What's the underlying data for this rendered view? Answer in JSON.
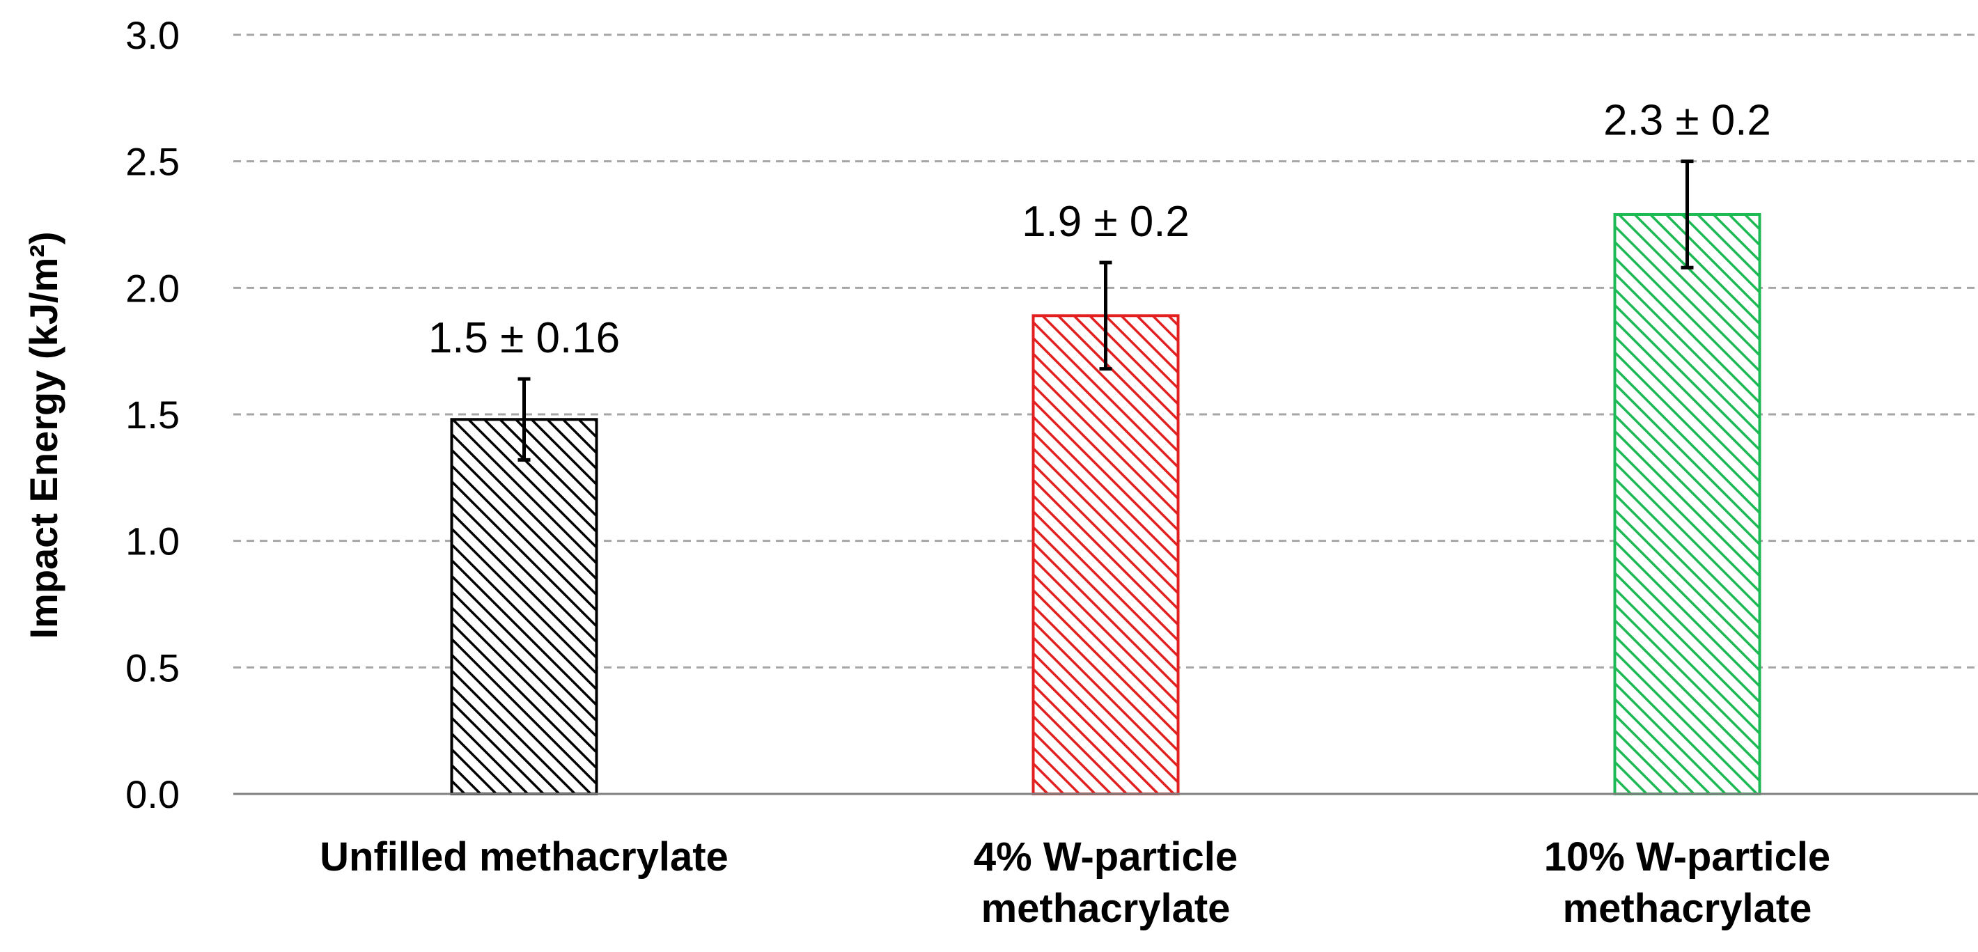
{
  "chart_data": {
    "type": "bar",
    "title": "",
    "xlabel": "",
    "ylabel": "Impact Energy (kJ/m²)",
    "ylim": [
      0,
      3.0
    ],
    "yticks": [
      "0.0",
      "0.5",
      "1.0",
      "1.5",
      "2.0",
      "2.5",
      "3.0"
    ],
    "grid": true,
    "categories": [
      [
        "Unfilled methacrylate"
      ],
      [
        "4% W-particle",
        "methacrylate"
      ],
      [
        "10% W-particle",
        "methacrylate"
      ]
    ],
    "values": [
      1.48,
      1.89,
      2.29
    ],
    "errors": [
      0.16,
      0.21,
      0.21
    ],
    "data_labels": [
      "1.5 ± 0.16",
      "1.9 ± 0.2",
      "2.3 ± 0.2"
    ],
    "colors": [
      "#000000",
      "#e32020",
      "#1db954"
    ],
    "fill_pattern": "diagonal-hatch"
  }
}
